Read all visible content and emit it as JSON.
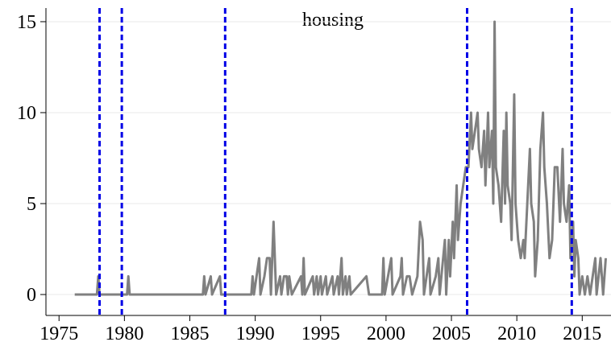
{
  "chart_data": {
    "type": "line",
    "title": "housing",
    "x": [
      1976.2,
      1977.9,
      1978.0,
      1978.1,
      1980.2,
      1980.3,
      1980.4,
      1986.0,
      1986.1,
      1986.2,
      1986.6,
      1986.7,
      1987.3,
      1987.4,
      1989.7,
      1989.8,
      1989.9,
      1990.3,
      1990.4,
      1990.7,
      1990.9,
      1991.1,
      1991.2,
      1991.4,
      1991.6,
      1991.9,
      1992.0,
      1992.2,
      1992.4,
      1992.5,
      1992.6,
      1992.8,
      1993.5,
      1993.6,
      1993.7,
      1993.8,
      1994.4,
      1994.5,
      1994.7,
      1994.8,
      1995.0,
      1995.1,
      1995.4,
      1995.5,
      1995.9,
      1996.0,
      1996.3,
      1996.4,
      1996.6,
      1996.7,
      1996.9,
      1997.0,
      1997.2,
      1997.3,
      1998.5,
      1998.7,
      1999.7,
      1999.8,
      1999.9,
      2000.4,
      2000.5,
      2001.1,
      2001.2,
      2001.3,
      2001.6,
      2001.8,
      2002.0,
      2002.4,
      2002.6,
      2002.8,
      2002.9,
      2003.3,
      2003.4,
      2003.8,
      2004.0,
      2004.1,
      2004.5,
      2004.6,
      2004.8,
      2004.9,
      2005.1,
      2005.2,
      2005.4,
      2005.5,
      2005.7,
      2005.9,
      2006.1,
      2006.3,
      2006.5,
      2006.6,
      2006.8,
      2007.0,
      2007.1,
      2007.3,
      2007.5,
      2007.6,
      2007.8,
      2007.9,
      2008.1,
      2008.2,
      2008.3,
      2008.4,
      2008.6,
      2008.8,
      2009.0,
      2009.1,
      2009.2,
      2009.3,
      2009.5,
      2009.6,
      2009.8,
      2009.9,
      2010.1,
      2010.3,
      2010.5,
      2010.6,
      2010.8,
      2011.0,
      2011.1,
      2011.3,
      2011.4,
      2011.6,
      2011.8,
      2012.0,
      2012.1,
      2012.3,
      2012.5,
      2012.7,
      2012.9,
      2013.1,
      2013.3,
      2013.5,
      2013.6,
      2013.8,
      2014.0,
      2014.1,
      2014.3,
      2014.4,
      2014.5,
      2014.7,
      2014.8,
      2015.0,
      2015.2,
      2015.4,
      2015.6,
      2015.8,
      2016.0,
      2016.1,
      2016.4,
      2016.6,
      2016.8
    ],
    "values": [
      0,
      0,
      1,
      0,
      0,
      1,
      0,
      0,
      1,
      0,
      1,
      0,
      1,
      0,
      0,
      1,
      0,
      2,
      0,
      1,
      2,
      2,
      0,
      4,
      0,
      1,
      0,
      1,
      1,
      0,
      1,
      0,
      1,
      0,
      2,
      0,
      1,
      0,
      1,
      0,
      1,
      0,
      1,
      0,
      1,
      0,
      1,
      0,
      2,
      0,
      1,
      0,
      1,
      0,
      1,
      0,
      0,
      2,
      0,
      2,
      0,
      1,
      2,
      0,
      1,
      1,
      0,
      1,
      4,
      3,
      0,
      2,
      0,
      1,
      2,
      0,
      3,
      0,
      3,
      1,
      4,
      2,
      6,
      3,
      5,
      6,
      7,
      7,
      10,
      8,
      9,
      10,
      8,
      7,
      9,
      6,
      10,
      7,
      9,
      5,
      15,
      7,
      6,
      4,
      9,
      5,
      10,
      6,
      5,
      3,
      11,
      5,
      3,
      2,
      3,
      2,
      5,
      8,
      5,
      4,
      1,
      3,
      8,
      10,
      7,
      5,
      2,
      3,
      7,
      7,
      4,
      8,
      5,
      4,
      6,
      2,
      4,
      1,
      3,
      2,
      0,
      1,
      0,
      1,
      0,
      1,
      2,
      0,
      2,
      0,
      2
    ],
    "color": "#808080",
    "vlines": [
      1978.1,
      1979.8,
      1987.7,
      2006.2,
      2014.2
    ],
    "vline_color": "#0000e6",
    "xlim": [
      1974,
      2017.2
    ],
    "xticks": [
      1975,
      1980,
      1985,
      1990,
      1995,
      2000,
      2005,
      2010,
      2015
    ],
    "ylim": [
      -1.15,
      15.75
    ],
    "yticks": [
      0,
      5,
      10,
      15
    ],
    "grid": true
  }
}
